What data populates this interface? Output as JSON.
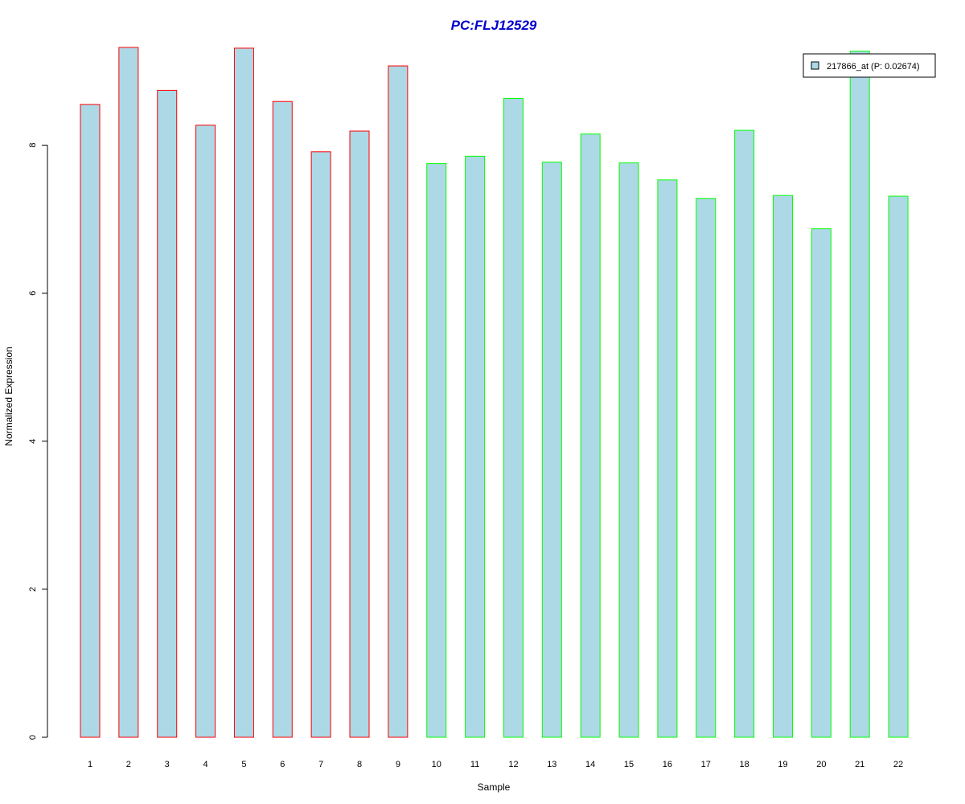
{
  "chart_data": {
    "type": "bar",
    "title": "PC:FLJ12529",
    "xlabel": "Sample",
    "ylabel": "Normalized Expression",
    "categories": [
      "1",
      "2",
      "3",
      "4",
      "5",
      "6",
      "7",
      "8",
      "9",
      "10",
      "11",
      "12",
      "13",
      "14",
      "15",
      "16",
      "17",
      "18",
      "19",
      "20",
      "21",
      "22"
    ],
    "values": [
      8.55,
      9.32,
      8.74,
      8.27,
      9.31,
      8.59,
      7.91,
      8.19,
      9.07,
      7.75,
      7.85,
      8.63,
      7.77,
      8.15,
      7.76,
      7.53,
      7.28,
      8.2,
      7.32,
      6.87,
      9.27,
      7.31
    ],
    "groups": [
      "red",
      "red",
      "red",
      "red",
      "red",
      "red",
      "red",
      "red",
      "red",
      "green",
      "green",
      "green",
      "green",
      "green",
      "green",
      "green",
      "green",
      "green",
      "green",
      "green",
      "green",
      "green"
    ],
    "ylim": [
      0,
      9.32
    ],
    "yticks": [
      0,
      2,
      4,
      6,
      8
    ],
    "grid": false,
    "legend": {
      "position": "top-right",
      "entries": [
        {
          "label": "217866_at (P: 0.02674)",
          "color": "#add8e6"
        }
      ]
    },
    "colors": {
      "fill": "#add8e6",
      "group_red": "#ff0000",
      "group_green": "#00ff00",
      "title": "#0000cd"
    }
  }
}
